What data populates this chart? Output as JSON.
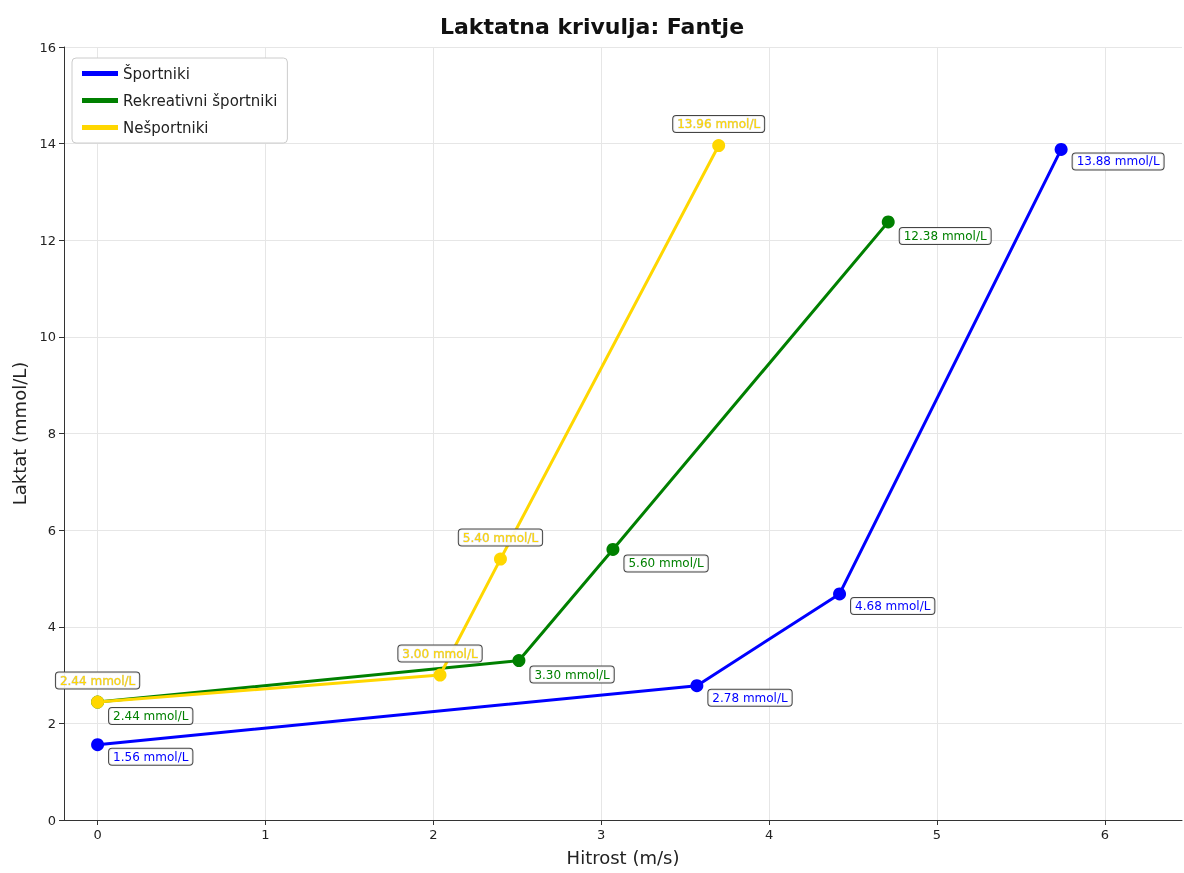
{
  "chart_data": {
    "type": "line",
    "title": "Laktatna krivulja: Fantje",
    "xlabel": "Hitrost (m/s)",
    "ylabel": "Laktat (mmol/L)",
    "xlim": [
      -0.2,
      6.46
    ],
    "xticks": [
      0,
      1,
      2,
      3,
      4,
      5,
      6
    ],
    "ylim": [
      0,
      16
    ],
    "yticks": [
      0,
      2,
      4,
      6,
      8,
      10,
      12,
      14,
      16
    ],
    "grid": true,
    "legend": "top left",
    "marker": "circle",
    "line_style": "solid",
    "series": [
      {
        "name": "Športniki",
        "color": "#0000ff",
        "x": [
          0,
          3.57,
          4.42,
          5.74
        ],
        "values": [
          1.56,
          2.78,
          4.68,
          13.88
        ],
        "value_labels": [
          "1.56 mmol/L",
          "2.78 mmol/L",
          "4.68 mmol/L",
          "13.88 mmol/L"
        ]
      },
      {
        "name": "Rekreativni športniki",
        "color": "#008000",
        "x": [
          0,
          2.51,
          3.07,
          4.71
        ],
        "values": [
          2.44,
          3.3,
          5.6,
          12.38
        ],
        "value_labels": [
          "2.44 mmol/L",
          "3.30 mmol/L",
          "5.60 mmol/L",
          "12.38 mmol/L"
        ]
      },
      {
        "name": "Nešportniki",
        "color": "#ffd700",
        "x": [
          0,
          2.04,
          2.4,
          3.7
        ],
        "values": [
          2.44,
          3.0,
          5.4,
          13.96
        ],
        "value_labels": [
          "2.44 mmol/L",
          "3.00 mmol/L",
          "5.40 mmol/L",
          "13.96 mmol/L"
        ]
      }
    ]
  }
}
